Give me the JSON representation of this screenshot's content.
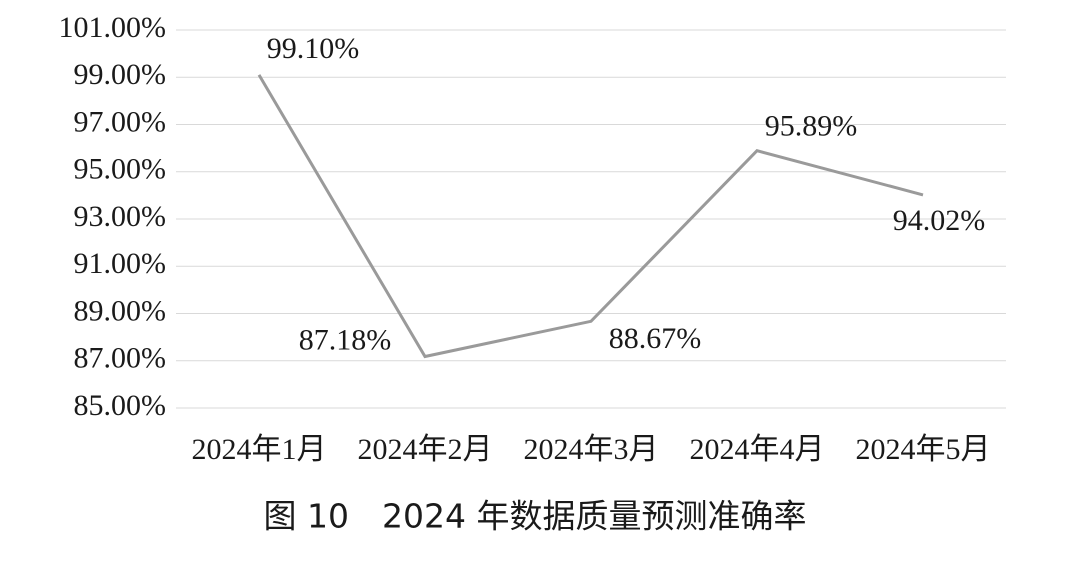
{
  "chart_data": {
    "type": "line",
    "title": "图 10　2024 年数据质量预测准确率",
    "categories": [
      "2024年1月",
      "2024年2月",
      "2024年3月",
      "2024年4月",
      "2024年5月"
    ],
    "series": [
      {
        "color": "#9a9a9a",
        "values": [
          99.1,
          87.18,
          88.67,
          95.89,
          94.02
        ],
        "value_labels": [
          "99.10%",
          "87.18%",
          "88.67%",
          "95.89%",
          "94.02%"
        ]
      }
    ],
    "ylim": [
      85,
      101
    ],
    "yticks": [
      {
        "value": 85,
        "label": "85.00%"
      },
      {
        "value": 87,
        "label": "87.00%"
      },
      {
        "value": 89,
        "label": "89.00%"
      },
      {
        "value": 91,
        "label": "91.00%"
      },
      {
        "value": 93,
        "label": "93.00%"
      },
      {
        "value": 95,
        "label": "95.00%"
      },
      {
        "value": 97,
        "label": "97.00%"
      },
      {
        "value": 99,
        "label": "99.00%"
      },
      {
        "value": 101,
        "label": "101.00%"
      }
    ],
    "grid": true
  }
}
